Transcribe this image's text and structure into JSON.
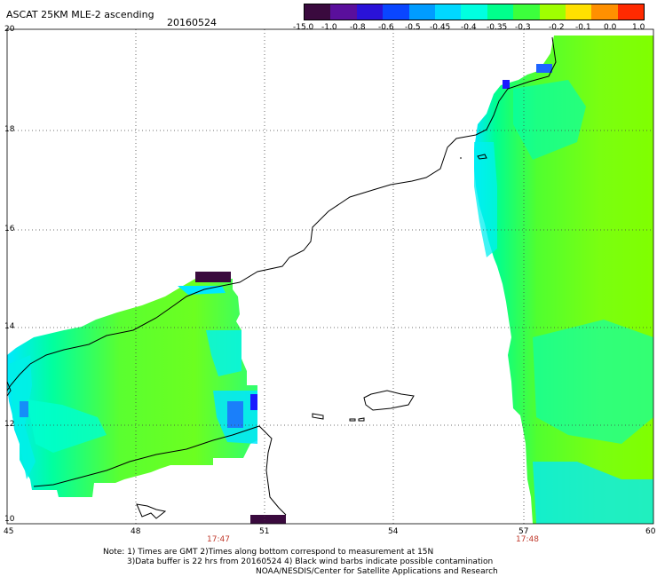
{
  "header": {
    "title": "ASCAT 25KM MLE-2 ascending",
    "date": "20160524"
  },
  "colorbar": {
    "labels": [
      "-15.0",
      "-1.0",
      "-0.8",
      "-0.6",
      "-0.5",
      "-0.45",
      "-0.4",
      "-0.35",
      "-0.3",
      "-0.2",
      "-0.1",
      "0.0",
      "1.0"
    ],
    "colors": [
      "#3a0a3e",
      "#5a0f9c",
      "#2a12d8",
      "#0a46ff",
      "#009cff",
      "#00d8ff",
      "#00ffe0",
      "#00ff8c",
      "#3cff3c",
      "#a0ff00",
      "#ffe000",
      "#ff9000",
      "#ff2a00"
    ]
  },
  "map": {
    "lon_labels": [
      "45",
      "48",
      "51",
      "54",
      "57",
      "60"
    ],
    "lat_labels": [
      "20",
      "18",
      "16",
      "14",
      "12",
      "10"
    ],
    "pass_times": [
      "17:47",
      "17:48"
    ]
  },
  "notes": {
    "line1": "Note: 1) Times are GMT 2)Times along bottom correspond to measurement at 15N",
    "line2": "3)Data buffer is 22 hrs from 20160524 4) Black wind barbs indicate possible contamination",
    "line3": "NOAA/NESDIS/Center for Satellite Applications and Research"
  }
}
